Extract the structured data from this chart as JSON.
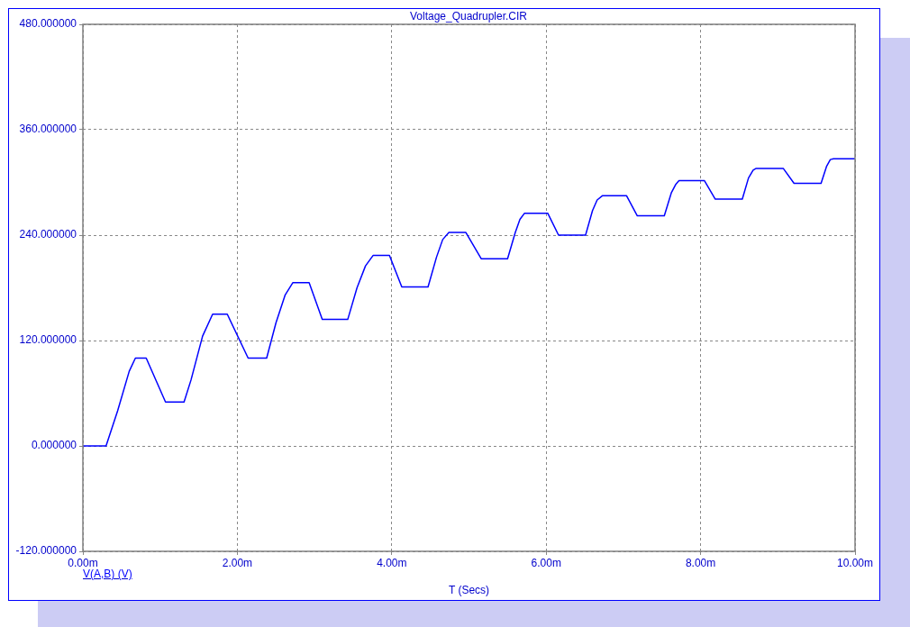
{
  "chart_data": {
    "type": "line",
    "title": "Voltage_Quadrupler.CIR",
    "xlabel": "T (Secs)",
    "x": [
      0,
      0.3,
      0.45,
      0.6,
      0.68,
      0.82,
      1.07,
      1.31,
      1.4,
      1.55,
      1.68,
      1.87,
      2.14,
      2.38,
      2.5,
      2.62,
      2.72,
      2.93,
      3.1,
      3.43,
      3.55,
      3.66,
      3.76,
      3.97,
      4.13,
      4.47,
      4.58,
      4.66,
      4.74,
      4.96,
      5.16,
      5.5,
      5.6,
      5.66,
      5.72,
      6.02,
      6.16,
      6.51,
      6.6,
      6.66,
      6.73,
      7.04,
      7.18,
      7.53,
      7.62,
      7.68,
      7.72,
      8.05,
      8.19,
      8.54,
      8.62,
      8.68,
      8.72,
      9.07,
      9.21,
      9.56,
      9.63,
      9.68,
      9.72,
      10
    ],
    "series": [
      {
        "name": "V(A,B) (V)",
        "color": "#0000ff",
        "values": [
          0,
          0,
          40,
          85,
          100,
          100,
          50,
          50,
          75,
          125,
          150,
          150,
          100,
          100,
          140,
          172,
          186,
          186,
          144,
          144,
          180,
          205,
          217,
          217,
          181,
          181,
          215,
          235,
          243,
          243,
          213,
          213,
          243,
          258,
          265,
          265,
          240,
          240,
          268,
          280,
          285,
          285,
          262,
          262,
          288,
          298,
          302,
          302,
          281,
          281,
          305,
          314,
          316,
          316,
          299,
          299,
          318,
          326,
          327,
          327
        ]
      }
    ],
    "xlim": [
      0,
      10
    ],
    "xticks": [
      {
        "value": 0,
        "label": "0.00m"
      },
      {
        "value": 2,
        "label": "2.00m"
      },
      {
        "value": 4,
        "label": "4.00m"
      },
      {
        "value": 6,
        "label": "6.00m"
      },
      {
        "value": 8,
        "label": "8.00m"
      },
      {
        "value": 10,
        "label": "10.00m"
      }
    ],
    "ylim": [
      -120,
      480
    ],
    "yticks": [
      {
        "value": -120,
        "label": "-120.000000"
      },
      {
        "value": 0,
        "label": "0.000000"
      },
      {
        "value": 120,
        "label": "120.000000"
      },
      {
        "value": 240,
        "label": "240.000000"
      },
      {
        "value": 360,
        "label": "360.000000"
      },
      {
        "value": 480,
        "label": "480.000000"
      }
    ],
    "grid": true,
    "legend": "bottom left",
    "marker": "none",
    "line_style": "solid"
  }
}
